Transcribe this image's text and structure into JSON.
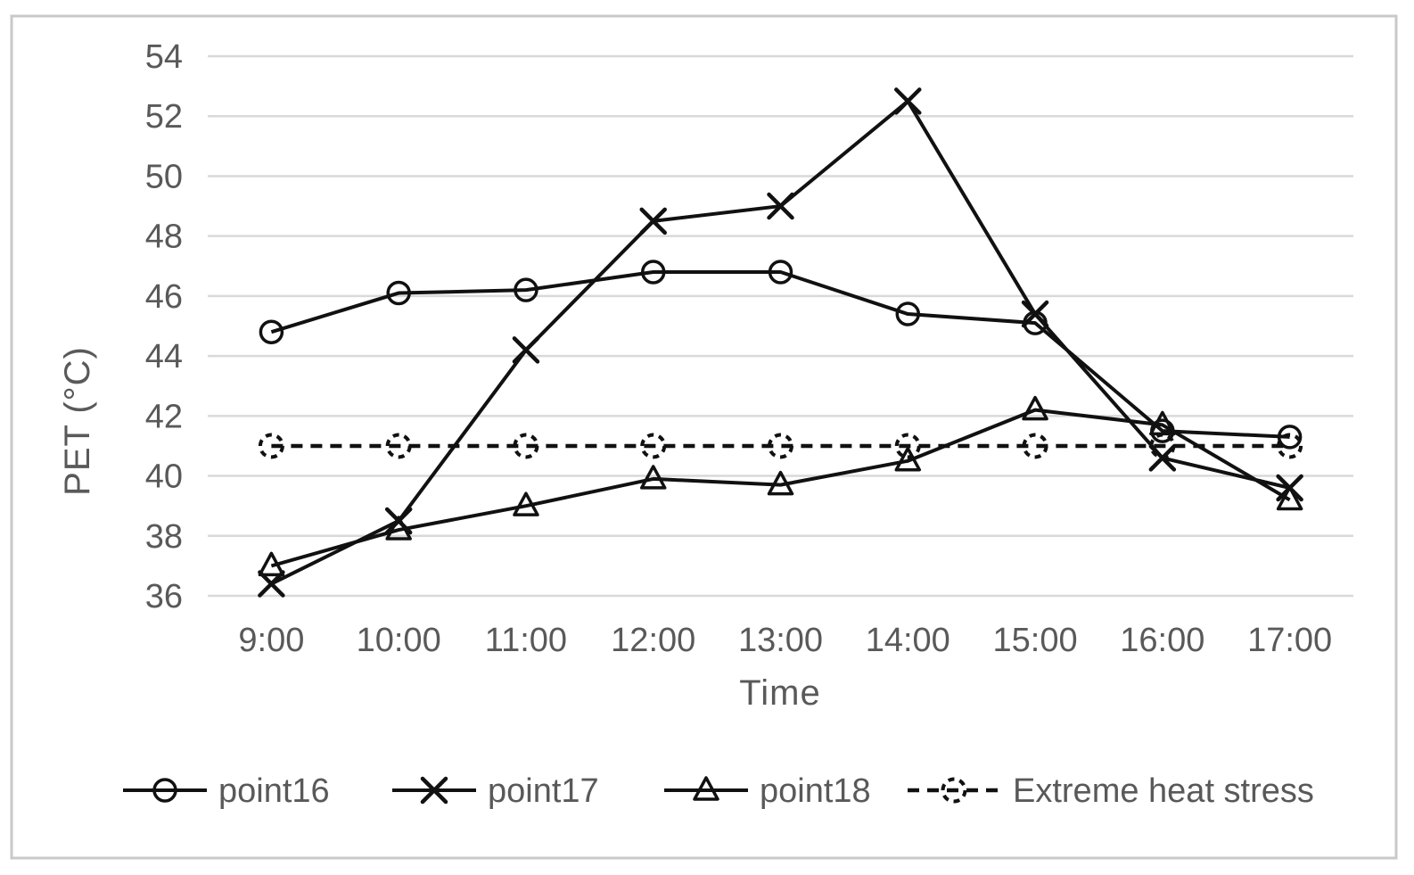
{
  "chart_data": {
    "type": "line",
    "title": "",
    "xlabel": "Time",
    "ylabel": "PET (°C)",
    "categories": [
      "9:00",
      "10:00",
      "11:00",
      "12:00",
      "13:00",
      "14:00",
      "15:00",
      "16:00",
      "17:00"
    ],
    "series": [
      {
        "name": "point16",
        "marker": "circle",
        "line_style": "solid",
        "values": [
          44.8,
          46.1,
          46.2,
          46.8,
          46.8,
          45.4,
          45.1,
          41.5,
          41.3
        ]
      },
      {
        "name": "point17",
        "marker": "x",
        "line_style": "solid",
        "values": [
          36.4,
          38.5,
          44.2,
          48.5,
          49.0,
          52.5,
          45.4,
          40.6,
          39.6
        ]
      },
      {
        "name": "point18",
        "marker": "triangle",
        "line_style": "solid",
        "values": [
          37.0,
          38.2,
          39.0,
          39.9,
          39.7,
          40.5,
          42.2,
          41.7,
          39.2
        ]
      },
      {
        "name": "Extreme heat stress",
        "marker": "dashed-circle",
        "line_style": "dashed",
        "values": [
          41,
          41,
          41,
          41,
          41,
          41,
          41,
          41,
          41
        ]
      }
    ],
    "ylim": [
      36,
      54
    ],
    "yticks": [
      36,
      38,
      40,
      42,
      44,
      46,
      48,
      50,
      52,
      54
    ],
    "grid": "horizontal",
    "legend_position": "bottom"
  },
  "colors": {
    "line": "#111111",
    "grid": "#d9d9d9",
    "label": "#595959",
    "border": "#c9c9c9",
    "background": "#ffffff"
  }
}
